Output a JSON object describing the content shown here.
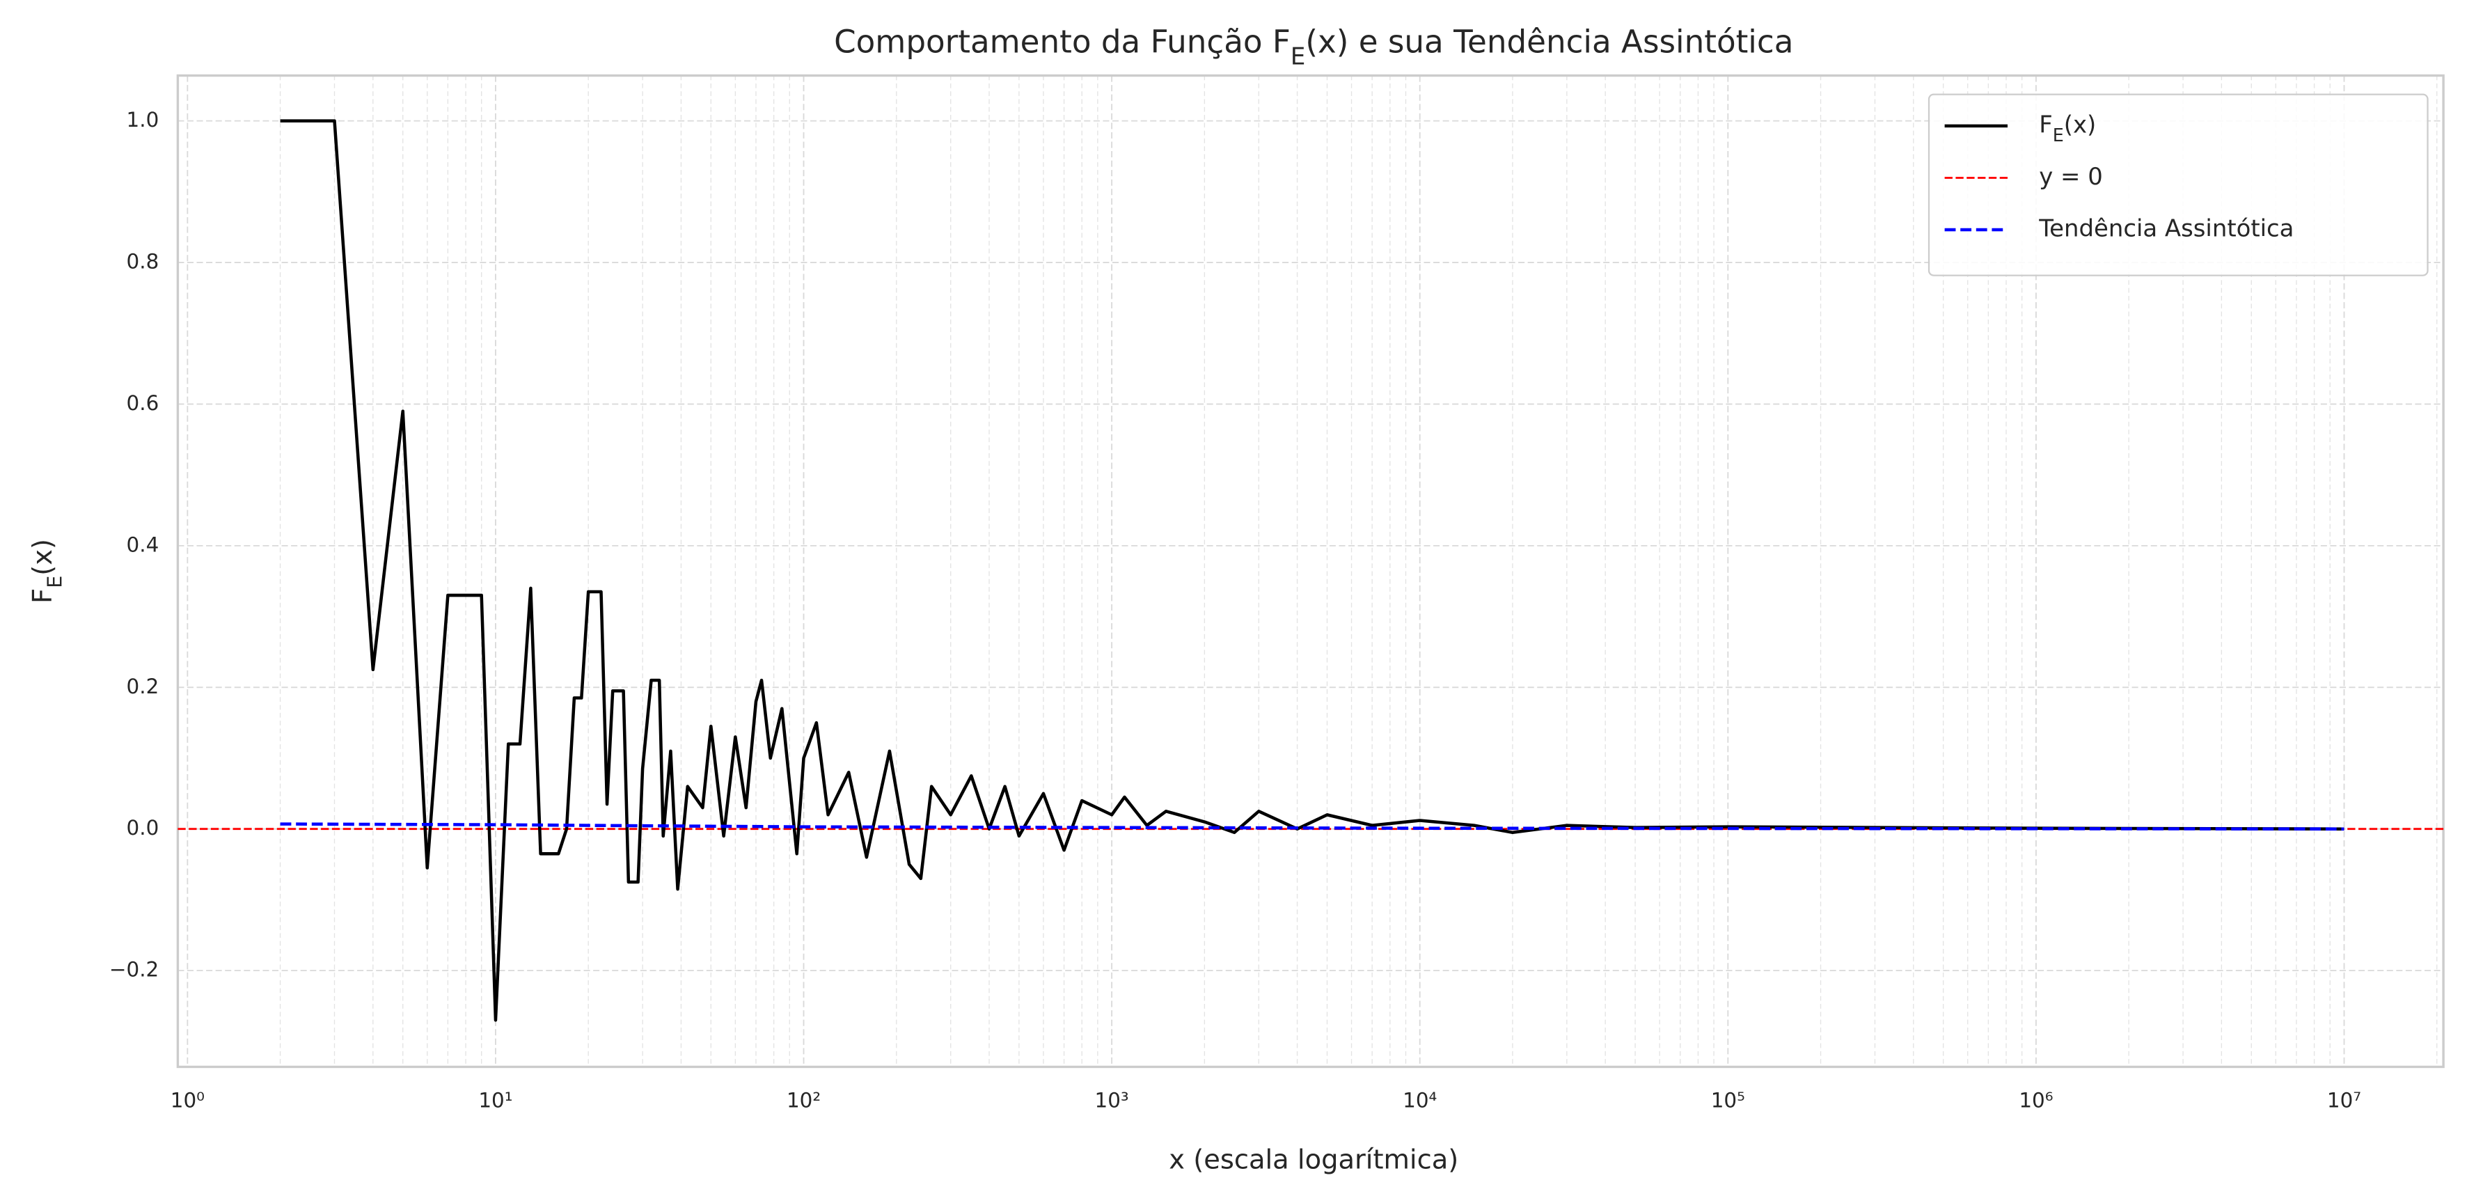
{
  "chart_data": {
    "type": "line",
    "title": "Comportamento da Função F_E(x) e sua Tendência Assintótica",
    "x_label": "x (escala logarítmica)",
    "y_label": "F_E(x)",
    "x_log": true,
    "grid": true,
    "minor_grid": true,
    "legend": "upper right",
    "xlim": [
      0.93,
      21000000
    ],
    "ylim": [
      -0.336,
      1.064
    ],
    "xticks": [
      {
        "value": 1,
        "label": "10⁰"
      },
      {
        "value": 10,
        "label": "10¹"
      },
      {
        "value": 100,
        "label": "10²"
      },
      {
        "value": 1000,
        "label": "10³"
      },
      {
        "value": 10000,
        "label": "10⁴"
      },
      {
        "value": 100000,
        "label": "10⁵"
      },
      {
        "value": 1000000,
        "label": "10⁶"
      },
      {
        "value": 10000000,
        "label": "10⁷"
      }
    ],
    "yticks": [
      {
        "value": -0.2,
        "label": "−0.2"
      },
      {
        "value": 0,
        "label": "0.0"
      },
      {
        "value": 0.2,
        "label": "0.2"
      },
      {
        "value": 0.4,
        "label": "0.4"
      },
      {
        "value": 0.6,
        "label": "0.6"
      },
      {
        "value": 0.8,
        "label": "0.8"
      },
      {
        "value": 1,
        "label": "1.0"
      }
    ],
    "series": [
      {
        "name": "F_E(x)",
        "color": "#000000",
        "dash": "solid",
        "x": [
          2,
          3,
          4,
          5,
          6,
          7,
          8,
          9,
          10,
          11,
          12,
          13,
          14,
          16,
          17,
          18,
          19,
          20,
          22,
          23,
          24,
          26,
          27,
          29,
          30,
          32,
          34,
          35,
          37,
          39,
          42,
          47,
          50,
          55,
          60,
          65,
          70,
          73,
          78,
          85,
          95,
          100,
          110,
          120,
          140,
          160,
          190,
          220,
          240,
          260,
          300,
          350,
          400,
          450,
          500,
          600,
          700,
          800,
          1000,
          1100,
          1300,
          1500,
          2000,
          2500,
          3000,
          4000,
          5000,
          7000,
          10000,
          15000,
          20000,
          30000,
          50000,
          100000,
          1000000,
          10000000
        ],
        "values": [
          1,
          1,
          0.225,
          0.59,
          -0.055,
          0.33,
          0.33,
          0.33,
          -0.27,
          0.12,
          0.12,
          0.34,
          -0.035,
          -0.035,
          0,
          0.185,
          0.185,
          0.335,
          0.335,
          0.035,
          0.195,
          0.195,
          -0.075,
          -0.075,
          0.085,
          0.21,
          0.21,
          -0.01,
          0.11,
          -0.085,
          0.06,
          0.03,
          0.145,
          -0.01,
          0.13,
          0.03,
          0.18,
          0.21,
          0.1,
          0.17,
          -0.035,
          0.1,
          0.15,
          0.02,
          0.08,
          -0.04,
          0.11,
          -0.05,
          -0.07,
          0.06,
          0.02,
          0.075,
          0,
          0.06,
          -0.01,
          0.05,
          -0.03,
          0.04,
          0.02,
          0.045,
          0.005,
          0.025,
          0.01,
          -0.005,
          0.025,
          0,
          0.02,
          0.005,
          0.012,
          0.005,
          -0.005,
          0.005,
          0.002,
          0.003,
          0.001,
          0
        ]
      },
      {
        "name": "Tendência Assintótica",
        "color": "#0000ff",
        "dash": "dashed",
        "x": [
          2,
          10,
          20,
          100,
          1000,
          10000,
          10000000
        ],
        "values": [
          0.007,
          0.006,
          0.005,
          0.003,
          0.002,
          0.001,
          0
        ]
      }
    ],
    "hlines": [
      {
        "name": "y = 0",
        "value": 0,
        "color": "#ff0000"
      }
    ]
  }
}
